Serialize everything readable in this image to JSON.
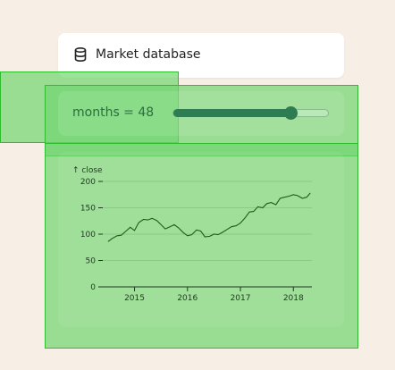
{
  "header": {
    "icon": "database-icon",
    "title": "Market database"
  },
  "slider": {
    "label": "months = 48",
    "value": 48,
    "fraction": 0.76,
    "fill_color": "#2e7d52"
  },
  "chart_data": {
    "type": "line",
    "ylabel": "↑ close",
    "ylim": [
      0,
      200
    ],
    "yticks": [
      0,
      50,
      100,
      150,
      200
    ],
    "xticks": [
      2015,
      2016,
      2017,
      2018
    ],
    "xlim": [
      2014.4,
      2018.35
    ],
    "grid": "horizontal",
    "line_color": "#1e5c1e",
    "series": [
      {
        "x": [
          2014.5,
          2014.58,
          2014.67,
          2014.75,
          2014.83,
          2014.92,
          2015.0,
          2015.08,
          2015.17,
          2015.25,
          2015.33,
          2015.42,
          2015.5,
          2015.58,
          2015.67,
          2015.75,
          2015.83,
          2015.92,
          2016.0,
          2016.08,
          2016.17,
          2016.25,
          2016.33,
          2016.42,
          2016.5,
          2016.58,
          2016.67,
          2016.75,
          2016.83,
          2016.92,
          2017.0,
          2017.08,
          2017.17,
          2017.25,
          2017.33,
          2017.42,
          2017.5,
          2017.58,
          2017.67,
          2017.75,
          2017.83,
          2017.92,
          2018.0,
          2018.08,
          2018.17,
          2018.25,
          2018.32
        ],
        "y": [
          86,
          92,
          97,
          98,
          105,
          113,
          107,
          122,
          128,
          127,
          130,
          126,
          118,
          110,
          114,
          118,
          112,
          103,
          97,
          99,
          108,
          106,
          95,
          96,
          100,
          99,
          104,
          109,
          114,
          116,
          121,
          130,
          142,
          143,
          152,
          150,
          158,
          160,
          156,
          168,
          170,
          172,
          175,
          173,
          168,
          170,
          178
        ]
      }
    ]
  }
}
